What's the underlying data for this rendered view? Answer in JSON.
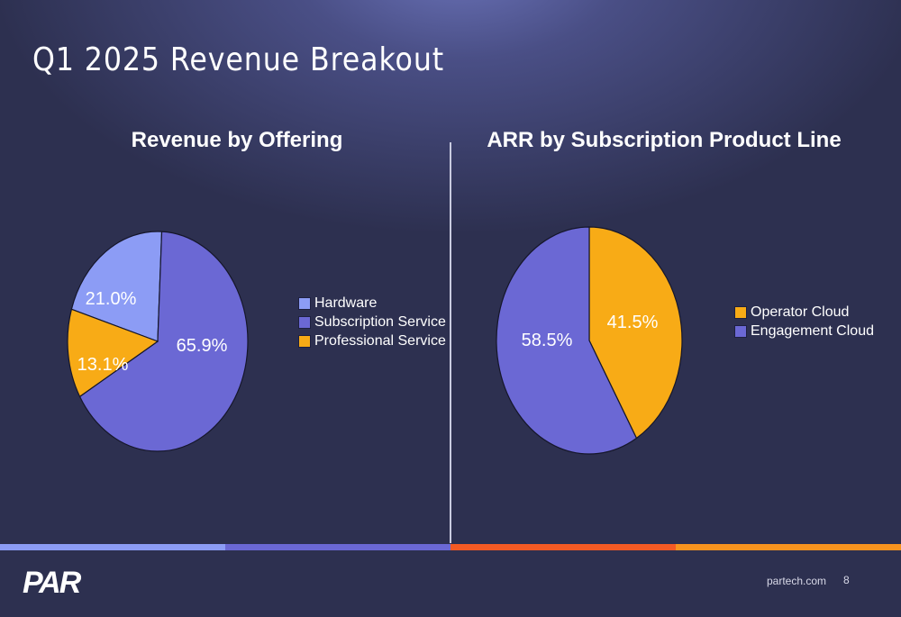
{
  "page": {
    "title": "Q1 2025 Revenue Breakout",
    "footer_url": "partech.com",
    "page_number": "8",
    "logo_text": "PAR"
  },
  "colors": {
    "background": "#2d3050",
    "hardware": "#8c9cf5",
    "subscription": "#6b68d4",
    "professional": "#f8ab16",
    "stripes": [
      "#8c9cf5",
      "#6b68d4",
      "#f45a24",
      "#f7931e"
    ]
  },
  "chart_data": [
    {
      "type": "pie",
      "title": "Revenue by Offering",
      "slices": [
        {
          "label": "Hardware",
          "value": 21.0,
          "value_label": "21.0%",
          "color": "#8c9cf5"
        },
        {
          "label": "Subscription Service",
          "value": 65.9,
          "value_label": "65.9%",
          "color": "#6b68d4"
        },
        {
          "label": "Professional Service",
          "value": 13.1,
          "value_label": "13.1%",
          "color": "#f8ab16"
        }
      ],
      "legend_position": "right"
    },
    {
      "type": "pie",
      "title": "ARR by Subscription Product Line",
      "slices": [
        {
          "label": "Operator Cloud",
          "value": 41.5,
          "value_label": "41.5%",
          "color": "#f8ab16"
        },
        {
          "label": "Engagement Cloud",
          "value": 58.5,
          "value_label": "58.5%",
          "color": "#6b68d4"
        }
      ],
      "legend_position": "right"
    }
  ]
}
